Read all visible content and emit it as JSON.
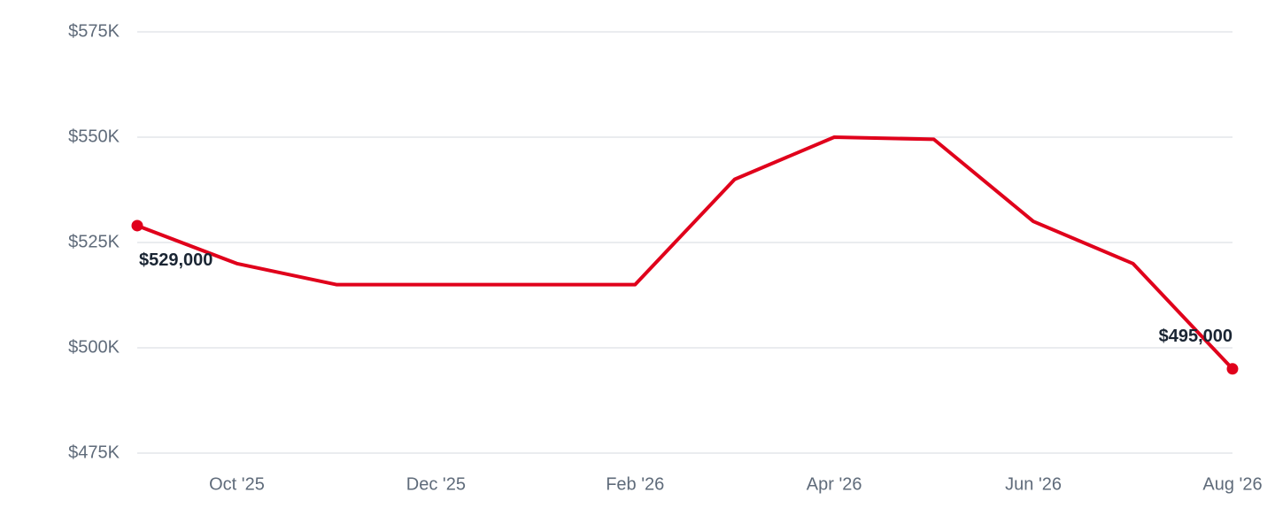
{
  "chart_data": {
    "type": "line",
    "categories": [
      null,
      "Oct '25",
      null,
      "Dec '25",
      null,
      "Feb '26",
      null,
      "Apr '26",
      null,
      "Jun '26",
      null,
      "Aug '26"
    ],
    "values": [
      529000,
      520000,
      515000,
      515000,
      515000,
      515000,
      540000,
      550000,
      549500,
      530000,
      520000,
      495000
    ],
    "value_labels": [
      "$529,000",
      null,
      null,
      null,
      null,
      null,
      null,
      null,
      null,
      null,
      null,
      "$495,000"
    ],
    "color": "#e0001b",
    "ylim": [
      475000,
      575000
    ],
    "yticks": [
      {
        "value": 475000,
        "label": "$475K"
      },
      {
        "value": 500000,
        "label": "$500K"
      },
      {
        "value": 525000,
        "label": "$525K"
      },
      {
        "value": 550000,
        "label": "$550K"
      },
      {
        "value": 575000,
        "label": "$575K"
      }
    ],
    "grid": true
  }
}
